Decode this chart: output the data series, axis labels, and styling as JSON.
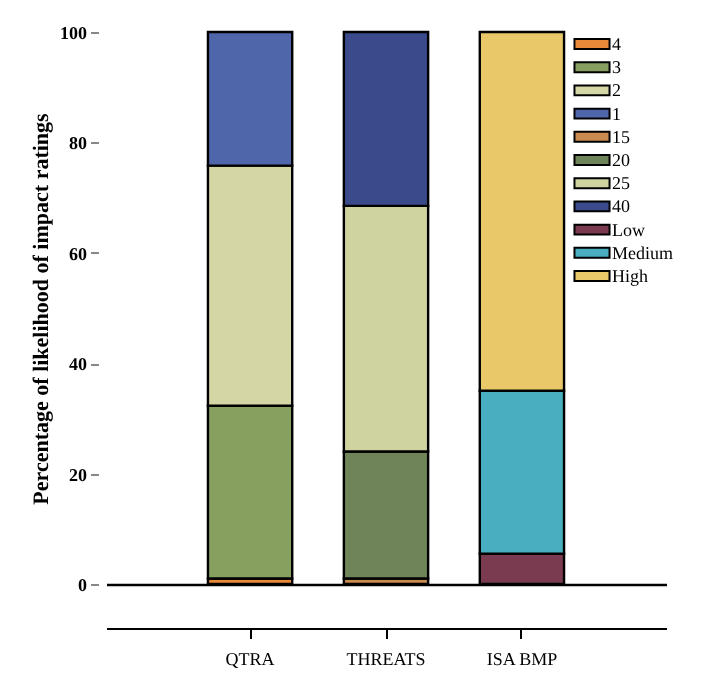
{
  "chart_data": {
    "type": "bar",
    "stacked": true,
    "ylabel": "Percentage of likelihood of impact ratings",
    "categories": [
      "QTRA",
      "THREATS",
      "ISA BMP"
    ],
    "ylim": [
      0,
      100
    ],
    "yticks": [
      0,
      20,
      40,
      60,
      80,
      100
    ],
    "legend": "top right",
    "series": [
      {
        "name": "4",
        "color": "#e8893a",
        "values": [
          1,
          null,
          null
        ]
      },
      {
        "name": "3",
        "color": "#87a060",
        "values": [
          31.3,
          null,
          null
        ]
      },
      {
        "name": "2",
        "color": "#d4d6a5",
        "values": [
          43.5,
          null,
          null
        ]
      },
      {
        "name": "1",
        "color": "#5066aa",
        "values": [
          24.2,
          null,
          null
        ]
      },
      {
        "name": "15",
        "color": "#c98a4f",
        "values": [
          null,
          1,
          null
        ]
      },
      {
        "name": "20",
        "color": "#6f8458",
        "values": [
          null,
          23,
          null
        ]
      },
      {
        "name": "25",
        "color": "#cfd3a0",
        "values": [
          null,
          44.5,
          null
        ]
      },
      {
        "name": "40",
        "color": "#3a4a8a",
        "values": [
          null,
          31.5,
          null
        ]
      },
      {
        "name": "Low",
        "color": "#7a3a50",
        "values": [
          null,
          null,
          5.5
        ]
      },
      {
        "name": "Medium",
        "color": "#48aec0",
        "values": [
          null,
          null,
          29.5
        ]
      },
      {
        "name": "High",
        "color": "#e8c868",
        "values": [
          null,
          null,
          65
        ]
      }
    ]
  }
}
